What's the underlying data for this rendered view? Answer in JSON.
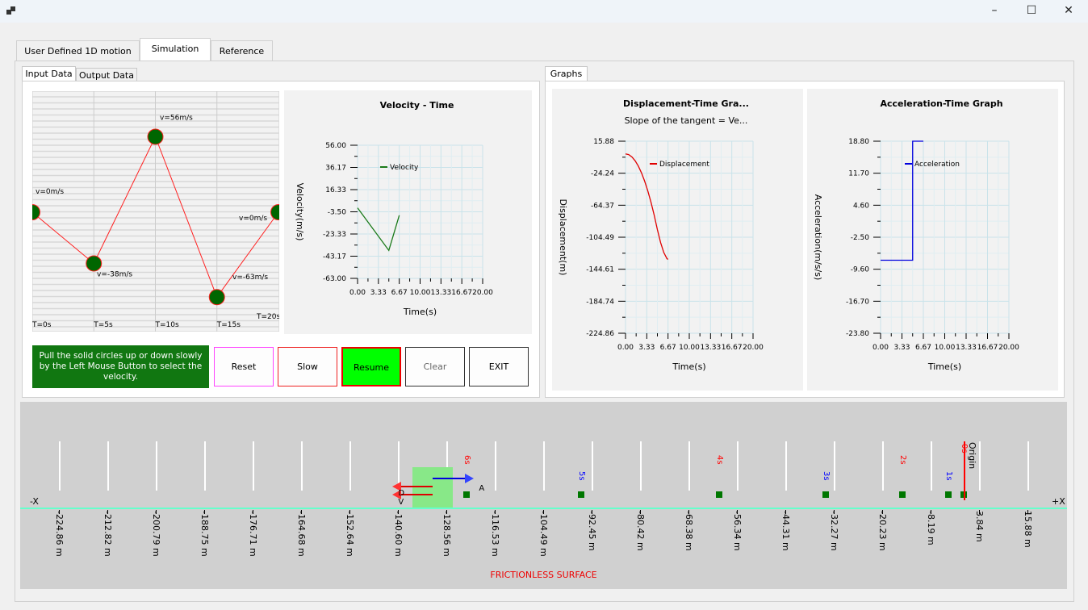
{
  "window": {
    "minimize": "–",
    "maximize": "☐",
    "close": "✕",
    "app_icon": "app-icon"
  },
  "tabs": [
    "User Defined 1D motion",
    "Simulation",
    "Reference"
  ],
  "selected_tab": "Simulation",
  "left": {
    "tabs": [
      "Input Data",
      "Output Data"
    ],
    "input_grid": {
      "time_labels": [
        "T=0s",
        "T=5s",
        "T=10s",
        "T=15s",
        "T=20s"
      ],
      "points": [
        {
          "t": 0,
          "v": 0,
          "label": "v=0m/s"
        },
        {
          "t": 5,
          "v": -38,
          "label": "v=-38m/s"
        },
        {
          "t": 10,
          "v": 56,
          "label": "v=56m/s"
        },
        {
          "t": 15,
          "v": -63,
          "label": "v=-63m/s"
        },
        {
          "t": 20,
          "v": 0,
          "label": "v=0m/s"
        }
      ]
    },
    "instruction": "Pull the solid circles up or down slowly by the Left Mouse Button to select the velocity.",
    "buttons": {
      "reset": "Reset",
      "slow": "Slow",
      "resume": "Resume",
      "clear": "Clear",
      "exit": "EXIT"
    }
  },
  "right": {
    "tabs": [
      "Graphs"
    ]
  },
  "chart_data": [
    {
      "type": "line",
      "title": "Velocity - Time",
      "subtitle": "",
      "xlabel": "Time(s)",
      "ylabel": "Velocity(m/s)",
      "xticks": [
        "0.00",
        "3.33",
        "6.67",
        "10.00",
        "13.33",
        "16.67",
        "20.00"
      ],
      "yticks": [
        "56.00",
        "36.17",
        "16.33",
        "-3.50",
        "-23.33",
        "-43.17",
        "-63.00"
      ],
      "xlim": [
        0,
        20
      ],
      "ylim": [
        -63,
        56
      ],
      "grid": true,
      "legend": "top-left",
      "color": "#1a7a1a",
      "series": [
        {
          "name": "Velocity",
          "x": [
            0,
            5,
            6.67
          ],
          "y": [
            0,
            -38,
            -6.6
          ]
        }
      ]
    },
    {
      "type": "line",
      "title": "Displacement-Time  Gra...",
      "subtitle": "Slope of the tangent = Ve...",
      "xlabel": "Time(s)",
      "ylabel": "Displacement(m)",
      "xticks": [
        "0.00",
        "3.33",
        "6.67",
        "10.00",
        "13.33",
        "16.67",
        "20.00"
      ],
      "yticks": [
        "15.88",
        "-24.24",
        "-64.37",
        "-104.49",
        "-144.61",
        "-184.74",
        "-224.86"
      ],
      "xlim": [
        0,
        20
      ],
      "ylim": [
        -224.86,
        15.88
      ],
      "grid": true,
      "legend": "top-left",
      "color": "#e00000",
      "series": [
        {
          "name": "Displacement",
          "x": [
            0,
            0.5,
            1,
            1.5,
            2,
            2.5,
            3,
            3.5,
            4,
            4.5,
            5,
            5.5,
            6,
            6.5,
            6.67
          ],
          "y": [
            0,
            -0.95,
            -3.8,
            -8.55,
            -15.2,
            -23.75,
            -34.2,
            -46.55,
            -60.8,
            -76.95,
            -95,
            -111.1,
            -123.6,
            -131.4,
            -132.2
          ]
        }
      ]
    },
    {
      "type": "line",
      "title": "Acceleration-Time Graph",
      "subtitle": "",
      "xlabel": "Time(s)",
      "ylabel": "Acceleration(m/s/s)",
      "xticks": [
        "0.00",
        "3.33",
        "6.67",
        "10.00",
        "13.33",
        "16.67",
        "20.00"
      ],
      "yticks": [
        "18.80",
        "11.70",
        "4.60",
        "-2.50",
        "-9.60",
        "-16.70",
        "-23.80"
      ],
      "xlim": [
        0,
        20
      ],
      "ylim": [
        -23.8,
        18.8
      ],
      "grid": true,
      "legend": "top-left",
      "color": "#0000dd",
      "series": [
        {
          "name": "Acceleration",
          "x": [
            0,
            5,
            5,
            6.67
          ],
          "y": [
            -7.6,
            -7.6,
            18.8,
            18.8
          ]
        }
      ]
    }
  ],
  "simulation": {
    "scale_labels": [
      "-224.86 m",
      "-212.82 m",
      "-200.79 m",
      "-188.75 m",
      "-176.71 m",
      "-164.68 m",
      "-152.64 m",
      "-140.60 m",
      "-128.56 m",
      "-116.53 m",
      "-104.49 m",
      "-92.45 m",
      "-80.42 m",
      "-68.38 m",
      "-56.34 m",
      "-44.31 m",
      "-32.27 m",
      "-20.23 m",
      "-8.19 m",
      "3.84 m",
      "15.88 m"
    ],
    "range": [
      -224.86,
      15.88
    ],
    "minus_x": "-X",
    "plus_x": "+X",
    "origin": "Origin",
    "surface": "FRICTIONLESS SURFACE",
    "object_position": -131.9,
    "accel_label": "A",
    "disp_label": "D",
    "vel_label": "V",
    "markers": [
      {
        "label": "0s",
        "pos": 0,
        "color": "#ff0000"
      },
      {
        "label": "1s",
        "pos": -3.8,
        "color": "#0000ff"
      },
      {
        "label": "2s",
        "pos": -15.2,
        "color": "#ff0000"
      },
      {
        "label": "3s",
        "pos": -34.2,
        "color": "#0000ff"
      },
      {
        "label": "4s",
        "pos": -60.8,
        "color": "#ff0000"
      },
      {
        "label": "5s",
        "pos": -95,
        "color": "#0000ff"
      },
      {
        "label": "6s",
        "pos": -123.6,
        "color": "#ff0000"
      }
    ]
  }
}
